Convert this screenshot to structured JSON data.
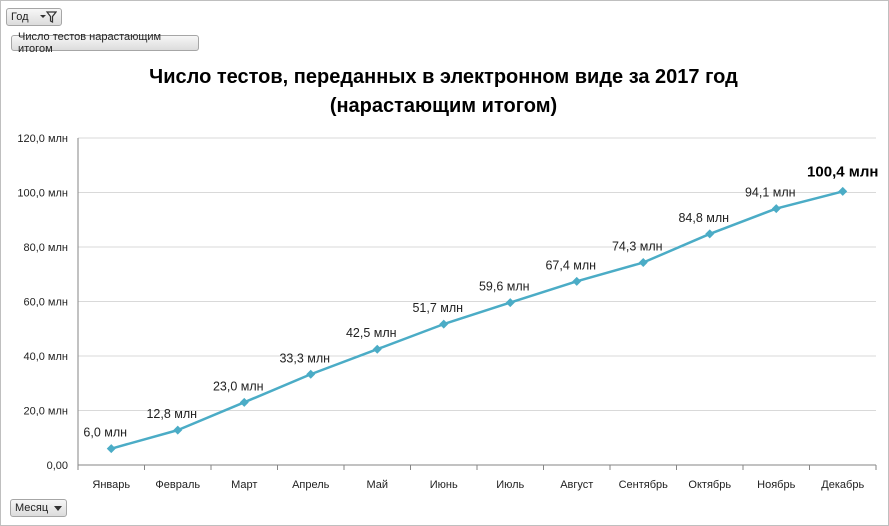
{
  "pivot": {
    "year_label": "Год",
    "measure_label": "Число тестов нарастающим итогом",
    "month_label": "Месяц"
  },
  "icons": {
    "filter": "filter-icon",
    "dropdown": "dropdown-arrow-icon"
  },
  "colors": {
    "line": "#4bacc6",
    "grid": "#d9d9d9",
    "axis": "#868686"
  },
  "chart_data": {
    "type": "line",
    "title_line1": "Число тестов, переданных в электронном виде за 2017 год",
    "title_line2": "(нарастающим итогом)",
    "categories": [
      "Январь",
      "Февраль",
      "Март",
      "Апрель",
      "Май",
      "Июнь",
      "Июль",
      "Август",
      "Сентябрь",
      "Октябрь",
      "Ноябрь",
      "Декабрь"
    ],
    "series": [
      {
        "values": [
          6.0,
          12.8,
          23.0,
          33.3,
          42.5,
          51.7,
          59.6,
          67.4,
          74.3,
          84.8,
          94.1,
          100.4
        ]
      }
    ],
    "data_labels": [
      "6,0 млн",
      "12,8 млн",
      "23,0 млн",
      "33,3 млн",
      "42,5 млн",
      "51,7 млн",
      "59,6 млн",
      "67,4 млн",
      "74,3 млн",
      "84,8 млн",
      "94,1 млн",
      "100,4 млн"
    ],
    "y_ticks": [
      0,
      20,
      40,
      60,
      80,
      100,
      120
    ],
    "y_tick_labels": [
      "0,00",
      "20,0 млн",
      "40,0 млн",
      "60,0 млн",
      "80,0 млн",
      "100,0 млн",
      "120,0 млн"
    ],
    "ylim": [
      0,
      120
    ],
    "grid": true,
    "legend": "none"
  }
}
